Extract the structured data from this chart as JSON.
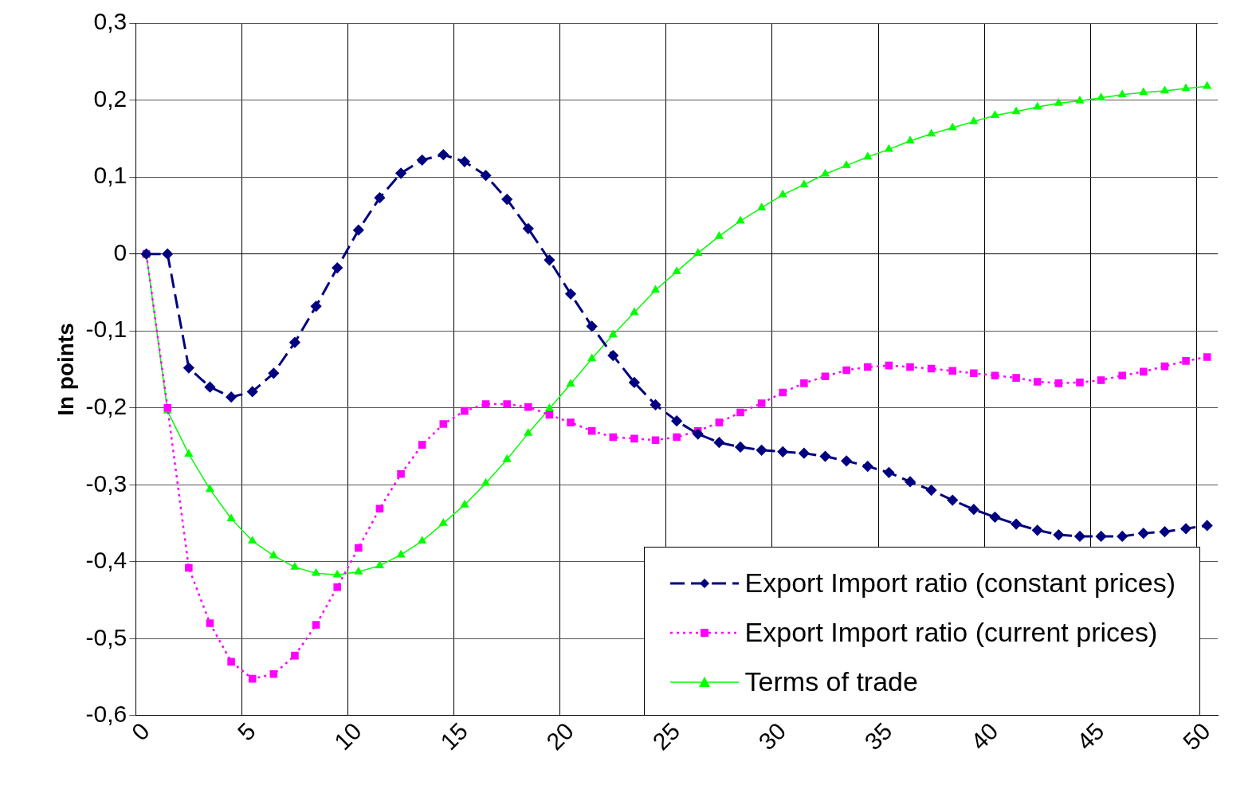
{
  "chart_data": {
    "type": "line",
    "ylabel": "In points",
    "categories": [
      "0",
      null,
      null,
      null,
      null,
      "5",
      null,
      null,
      null,
      null,
      "10",
      null,
      null,
      null,
      null,
      "15",
      null,
      null,
      null,
      null,
      "20",
      null,
      null,
      null,
      null,
      "25",
      null,
      null,
      null,
      null,
      "30",
      null,
      null,
      null,
      null,
      "35",
      null,
      null,
      null,
      null,
      "40",
      null,
      null,
      null,
      null,
      "45",
      null,
      null,
      null,
      null,
      "50"
    ],
    "ylim": [
      -0.6,
      0.3
    ],
    "yticks": [
      {
        "value": -0.6,
        "label": "-0,6"
      },
      {
        "value": -0.5,
        "label": "-0,5"
      },
      {
        "value": -0.4,
        "label": "-0,4"
      },
      {
        "value": -0.3,
        "label": "-0,3"
      },
      {
        "value": -0.2,
        "label": "-0,2"
      },
      {
        "value": -0.1,
        "label": "-0,1"
      },
      {
        "value": 0,
        "label": "0"
      },
      {
        "value": 0.1,
        "label": "0,1"
      },
      {
        "value": 0.2,
        "label": "0,2"
      },
      {
        "value": 0.3,
        "label": "0,3"
      }
    ],
    "grid": true,
    "legend": "bottom right",
    "series": [
      {
        "name": "Export Import ratio (constant prices)",
        "color": "#000080",
        "marker": "diamond",
        "line_style": "dashed",
        "values": [
          0,
          0,
          -0.148,
          -0.173,
          -0.186,
          -0.179,
          -0.155,
          -0.115,
          -0.068,
          -0.018,
          0.031,
          0.073,
          0.105,
          0.122,
          0.129,
          0.12,
          0.102,
          0.071,
          0.033,
          -0.008,
          -0.052,
          -0.094,
          -0.132,
          -0.167,
          -0.196,
          -0.217,
          -0.234,
          -0.245,
          -0.251,
          -0.255,
          -0.257,
          -0.259,
          -0.263,
          -0.269,
          -0.276,
          -0.284,
          -0.296,
          -0.307,
          -0.32,
          -0.332,
          -0.342,
          -0.351,
          -0.359,
          -0.365,
          -0.367,
          -0.367,
          -0.367,
          -0.363,
          -0.361,
          -0.357,
          -0.353
        ]
      },
      {
        "name": "Export Import ratio (current prices)",
        "color": "#ff00ff",
        "marker": "square",
        "line_style": "dotted",
        "values": [
          0,
          -0.2,
          -0.408,
          -0.48,
          -0.53,
          -0.552,
          -0.546,
          -0.522,
          -0.482,
          -0.433,
          -0.382,
          -0.331,
          -0.286,
          -0.248,
          -0.221,
          -0.204,
          -0.195,
          -0.195,
          -0.199,
          -0.209,
          -0.219,
          -0.23,
          -0.238,
          -0.24,
          -0.242,
          -0.238,
          -0.23,
          -0.219,
          -0.206,
          -0.194,
          -0.18,
          -0.168,
          -0.159,
          -0.151,
          -0.147,
          -0.145,
          -0.147,
          -0.149,
          -0.152,
          -0.155,
          -0.158,
          -0.161,
          -0.166,
          -0.168,
          -0.167,
          -0.164,
          -0.158,
          -0.153,
          -0.146,
          -0.139,
          -0.134
        ]
      },
      {
        "name": "Terms of trade",
        "color": "#00ff00",
        "marker": "triangle",
        "line_style": "solid",
        "values": [
          0,
          -0.204,
          -0.26,
          -0.306,
          -0.344,
          -0.373,
          -0.392,
          -0.407,
          -0.415,
          -0.417,
          -0.413,
          -0.405,
          -0.391,
          -0.373,
          -0.35,
          -0.326,
          -0.298,
          -0.267,
          -0.233,
          -0.201,
          -0.169,
          -0.136,
          -0.105,
          -0.076,
          -0.047,
          -0.023,
          0.001,
          0.023,
          0.043,
          0.06,
          0.077,
          0.09,
          0.104,
          0.115,
          0.126,
          0.136,
          0.147,
          0.156,
          0.164,
          0.172,
          0.18,
          0.185,
          0.191,
          0.196,
          0.199,
          0.203,
          0.207,
          0.21,
          0.212,
          0.215,
          0.218
        ]
      }
    ]
  }
}
